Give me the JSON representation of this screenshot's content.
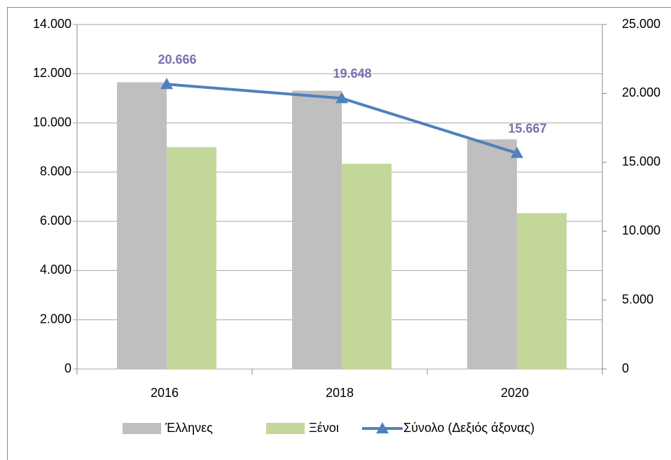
{
  "chart_data": {
    "type": "bar",
    "categories": [
      "2016",
      "2018",
      "2020"
    ],
    "series": [
      {
        "name": "Έλληνες",
        "color": "#bfbfbf",
        "values": [
          11650,
          11310,
          9330
        ]
      },
      {
        "name": "Ξένοι",
        "color": "#c4d79b",
        "values": [
          9016,
          8338,
          6337
        ]
      },
      {
        "name": "Σύνολο (Δεξιός άξονας)",
        "color": "#4f81bd",
        "type": "line",
        "axis": "y2",
        "values": [
          20666,
          19648,
          15667
        ],
        "value_labels": [
          "20.666",
          "19.648",
          "15.667"
        ]
      }
    ],
    "ylim": [
      0,
      14000
    ],
    "yticks": [
      0,
      {
        "value": 2000,
        "label": "2.000"
      },
      {
        "value": 4000,
        "label": "4.000"
      },
      {
        "value": 6000,
        "label": "6.000"
      },
      {
        "value": 8000,
        "label": "8.000"
      },
      {
        "value": 10000,
        "label": "10.000"
      },
      {
        "value": 12000,
        "label": "12.000"
      },
      {
        "value": 14000,
        "label": "14.000"
      }
    ],
    "y2lim": [
      0,
      25000
    ],
    "y2ticks": [
      0,
      {
        "value": 5000,
        "label": "5.000"
      },
      {
        "value": 10000,
        "label": "10.000"
      },
      {
        "value": 15000,
        "label": "15.000"
      },
      {
        "value": 20000,
        "label": "20.000"
      },
      {
        "value": 25000,
        "label": "25.000"
      }
    ],
    "grid": true,
    "legend": "bottom"
  }
}
